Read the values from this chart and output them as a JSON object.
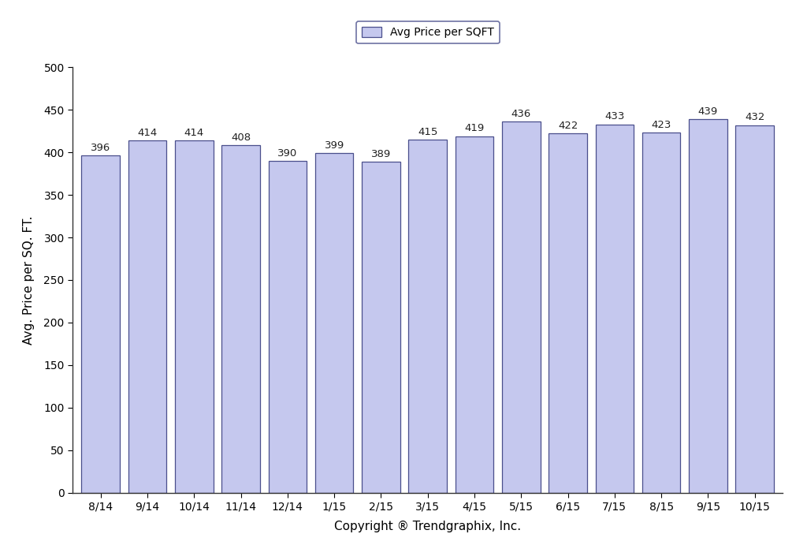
{
  "categories": [
    "8/14",
    "9/14",
    "10/14",
    "11/14",
    "12/14",
    "1/15",
    "2/15",
    "3/15",
    "4/15",
    "5/15",
    "6/15",
    "7/15",
    "8/15",
    "9/15",
    "10/15"
  ],
  "values": [
    396,
    414,
    414,
    408,
    390,
    399,
    389,
    415,
    419,
    436,
    422,
    433,
    423,
    439,
    432
  ],
  "bar_color": "#c5c8ee",
  "bar_edgecolor": "#4a4f8c",
  "ylabel": "Avg. Price per SQ. FT.",
  "xlabel": "Copyright ® Trendgraphix, Inc.",
  "legend_label": "Avg Price per SQFT",
  "ylim": [
    0,
    500
  ],
  "yticks": [
    0,
    50,
    100,
    150,
    200,
    250,
    300,
    350,
    400,
    450,
    500
  ],
  "background_color": "#ffffff",
  "bar_label_fontsize": 9.5,
  "axis_label_fontsize": 11,
  "tick_fontsize": 10,
  "legend_fontsize": 10,
  "bar_width": 0.82
}
